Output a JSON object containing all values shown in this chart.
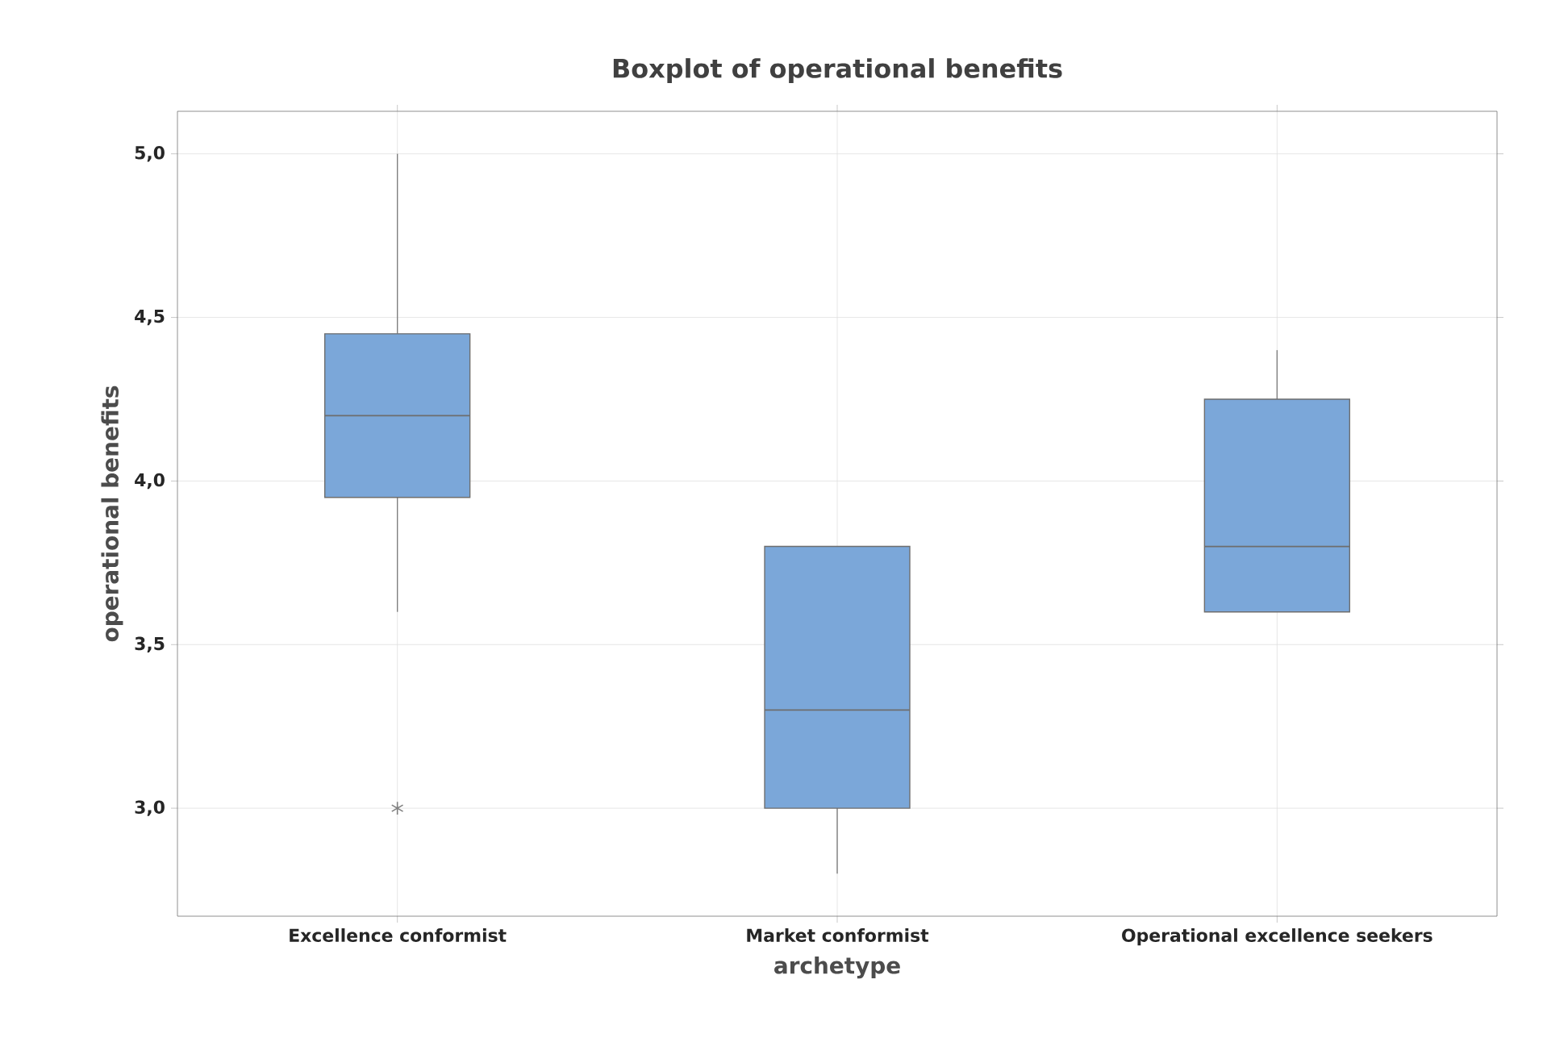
{
  "chart_data": {
    "type": "box",
    "title": "Boxplot of operational benefits",
    "xlabel": "archetype",
    "ylabel": "operational benefits",
    "categories": [
      "Excellence conformist",
      "Market conformist",
      "Operational excellence seekers"
    ],
    "boxes": [
      {
        "low": 3.6,
        "q1": 3.95,
        "median": 4.2,
        "q3": 4.45,
        "high": 5.0,
        "outliers": [
          3.0
        ]
      },
      {
        "low": 2.8,
        "q1": 3.0,
        "median": 3.3,
        "q3": 3.8,
        "high": 3.8
      },
      {
        "low": 3.6,
        "q1": 3.6,
        "median": 3.8,
        "q3": 4.25,
        "high": 4.4
      }
    ],
    "color": "#7ba7d9",
    "ylim": [
      2.67,
      5.13
    ],
    "yticks": [
      {
        "value": 3.0,
        "label": "3,0"
      },
      {
        "value": 3.5,
        "label": "3,5"
      },
      {
        "value": 4.0,
        "label": "4,0"
      },
      {
        "value": 4.5,
        "label": "4,5"
      },
      {
        "value": 5.0,
        "label": "5,0"
      }
    ],
    "grid": true,
    "marker": "star"
  }
}
